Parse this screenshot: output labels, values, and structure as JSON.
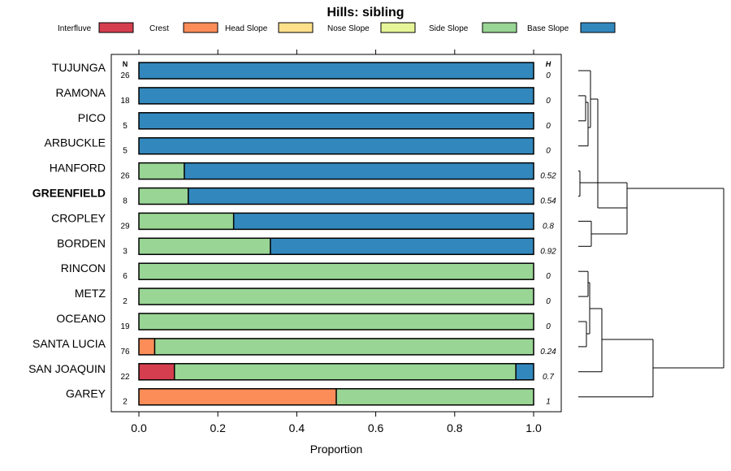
{
  "chart_data": {
    "type": "bar",
    "orientation": "horizontal",
    "stacked": true,
    "title": "Hills: sibling",
    "xlabel": "Proportion",
    "ylabel": "",
    "xlim": [
      0,
      1
    ],
    "x_ticks": [
      "0.0",
      "0.2",
      "0.4",
      "0.6",
      "0.8",
      "1.0"
    ],
    "x_tick_values": [
      0,
      0.2,
      0.4,
      0.6,
      0.8,
      1.0
    ],
    "n_header": "N",
    "h_header": "H",
    "grid": false,
    "legend_position": "top",
    "legend": [
      {
        "name": "Interfluve",
        "color": "#D53E4F"
      },
      {
        "name": "Crest",
        "color": "#FC8D59"
      },
      {
        "name": "Head Slope",
        "color": "#FEE08B"
      },
      {
        "name": "Nose Slope",
        "color": "#E6F598"
      },
      {
        "name": "Side Slope",
        "color": "#99D594"
      },
      {
        "name": "Base Slope",
        "color": "#3288BD"
      }
    ],
    "categories": [
      "TUJUNGA",
      "RAMONA",
      "PICO",
      "ARBUCKLE",
      "HANFORD",
      "GREENFIELD",
      "CROPLEY",
      "BORDEN",
      "RINCON",
      "METZ",
      "OCEANO",
      "SANTA LUCIA",
      "SAN JOAQUIN",
      "GAREY"
    ],
    "highlight": "GREENFIELD",
    "n": [
      "26",
      "18",
      "5",
      "5",
      "26",
      "8",
      "29",
      "3",
      "6",
      "2",
      "19",
      "76",
      "22",
      "2"
    ],
    "h": [
      "0",
      "0",
      "0",
      "0",
      "0.52",
      "0.54",
      "0.8",
      "0.92",
      "0",
      "0",
      "0",
      "0.24",
      "0.7",
      "1"
    ],
    "series": [
      {
        "name": "Interfluve",
        "values": [
          0,
          0,
          0,
          0,
          0,
          0,
          0,
          0,
          0,
          0,
          0,
          0,
          0.09,
          0
        ]
      },
      {
        "name": "Crest",
        "values": [
          0,
          0,
          0,
          0,
          0,
          0,
          0,
          0,
          0,
          0,
          0,
          0.04,
          0,
          0.5
        ]
      },
      {
        "name": "Head Slope",
        "values": [
          0,
          0,
          0,
          0,
          0,
          0,
          0,
          0,
          0,
          0,
          0,
          0,
          0,
          0
        ]
      },
      {
        "name": "Nose Slope",
        "values": [
          0,
          0,
          0,
          0,
          0,
          0,
          0,
          0,
          0,
          0,
          0,
          0,
          0,
          0
        ]
      },
      {
        "name": "Side Slope",
        "values": [
          0,
          0,
          0,
          0,
          0.115,
          0.125,
          0.24,
          0.333,
          1,
          1,
          1,
          0.96,
          0.865,
          0.5
        ]
      },
      {
        "name": "Base Slope",
        "values": [
          1,
          1,
          1,
          1,
          0.885,
          0.875,
          0.76,
          0.667,
          0,
          0,
          0,
          0,
          0.045,
          0
        ]
      }
    ],
    "dendrogram": {
      "type": "hierarchical-clustering",
      "leaf_order": [
        "TUJUNGA",
        "RAMONA",
        "PICO",
        "ARBUCKLE",
        "HANFORD",
        "GREENFIELD",
        "CROPLEY",
        "BORDEN",
        "RINCON",
        "METZ",
        "OCEANO",
        "SANTA LUCIA",
        "SAN JOAQUIN",
        "GAREY"
      ]
    }
  }
}
